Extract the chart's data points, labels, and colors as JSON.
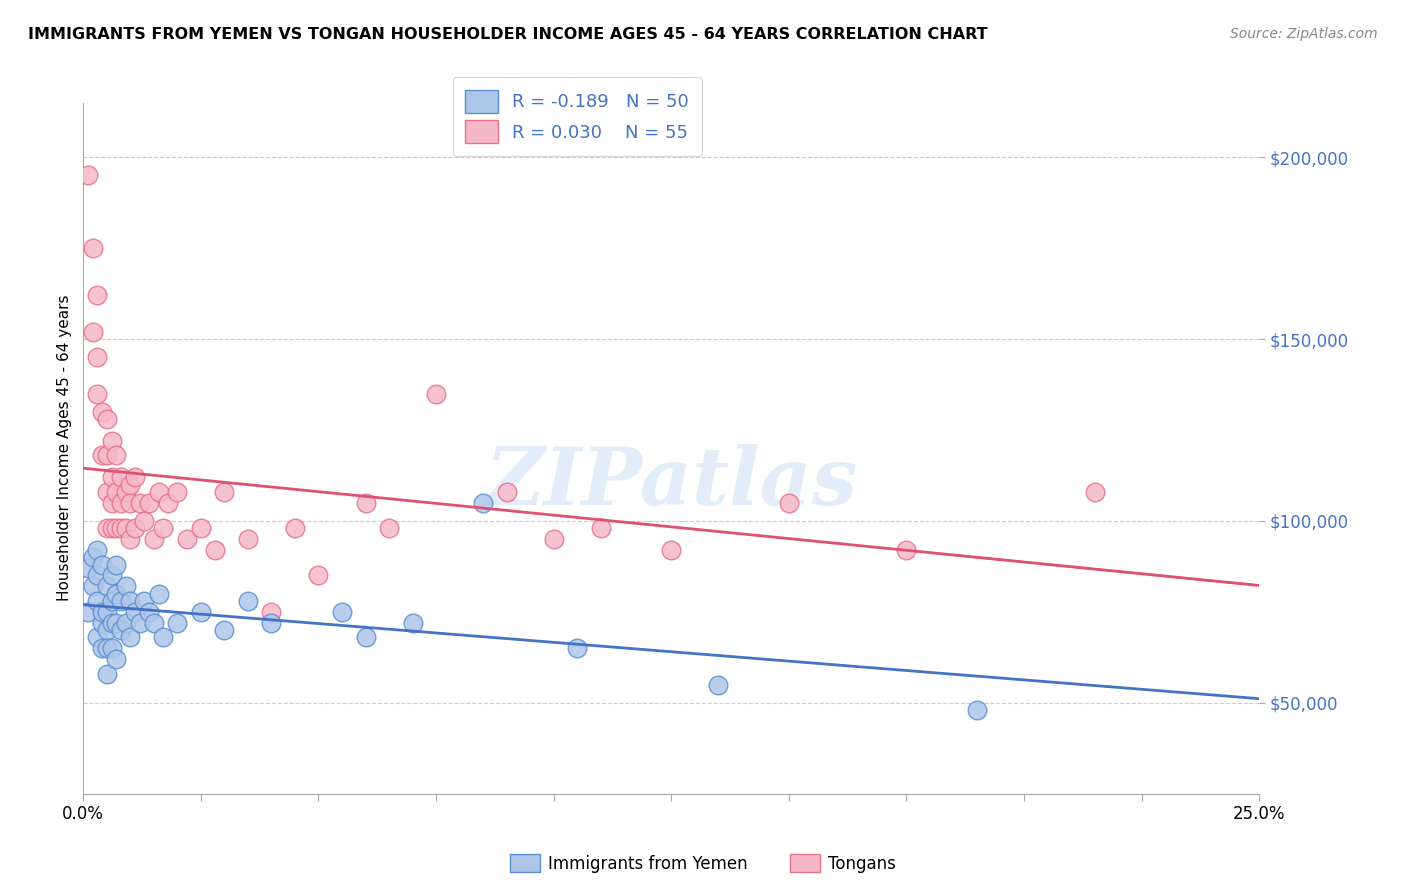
{
  "title": "IMMIGRANTS FROM YEMEN VS TONGAN HOUSEHOLDER INCOME AGES 45 - 64 YEARS CORRELATION CHART",
  "source": "Source: ZipAtlas.com",
  "ylabel": "Householder Income Ages 45 - 64 years",
  "xlim": [
    0.0,
    0.25
  ],
  "ylim": [
    25000,
    215000
  ],
  "yticks": [
    50000,
    100000,
    150000,
    200000
  ],
  "ytick_labels": [
    "$50,000",
    "$100,000",
    "$150,000",
    "$200,000"
  ],
  "xticks": [
    0.0,
    0.025,
    0.05,
    0.075,
    0.1,
    0.125,
    0.15,
    0.175,
    0.2,
    0.225,
    0.25
  ],
  "xtick_labels": [
    "0.0%",
    "",
    "",
    "",
    "",
    "",
    "",
    "",
    "",
    "",
    "25.0%"
  ],
  "legend_r_blue": "-0.189",
  "legend_n_blue": "50",
  "legend_r_pink": "0.030",
  "legend_n_pink": "55",
  "blue_color": "#adc6e8",
  "pink_color": "#f5b8c8",
  "blue_edge_color": "#5b8ed6",
  "pink_edge_color": "#e8708a",
  "blue_line_color": "#4472c4",
  "pink_line_color": "#e05070",
  "label_color": "#4472c4",
  "watermark": "ZIPatlas",
  "blue_scatter_x": [
    0.001,
    0.001,
    0.002,
    0.002,
    0.003,
    0.003,
    0.003,
    0.003,
    0.004,
    0.004,
    0.004,
    0.004,
    0.005,
    0.005,
    0.005,
    0.005,
    0.005,
    0.006,
    0.006,
    0.006,
    0.006,
    0.007,
    0.007,
    0.007,
    0.007,
    0.008,
    0.008,
    0.009,
    0.009,
    0.01,
    0.01,
    0.011,
    0.012,
    0.013,
    0.014,
    0.015,
    0.016,
    0.017,
    0.02,
    0.025,
    0.03,
    0.035,
    0.04,
    0.055,
    0.06,
    0.07,
    0.085,
    0.105,
    0.135,
    0.19
  ],
  "blue_scatter_y": [
    87000,
    75000,
    90000,
    82000,
    78000,
    92000,
    85000,
    68000,
    72000,
    88000,
    75000,
    65000,
    82000,
    75000,
    70000,
    65000,
    58000,
    85000,
    78000,
    72000,
    65000,
    88000,
    80000,
    72000,
    62000,
    78000,
    70000,
    82000,
    72000,
    78000,
    68000,
    75000,
    72000,
    78000,
    75000,
    72000,
    80000,
    68000,
    72000,
    75000,
    70000,
    78000,
    72000,
    75000,
    68000,
    72000,
    105000,
    65000,
    55000,
    48000
  ],
  "pink_scatter_x": [
    0.001,
    0.002,
    0.002,
    0.003,
    0.003,
    0.003,
    0.004,
    0.004,
    0.005,
    0.005,
    0.005,
    0.005,
    0.006,
    0.006,
    0.006,
    0.006,
    0.007,
    0.007,
    0.007,
    0.008,
    0.008,
    0.008,
    0.009,
    0.009,
    0.01,
    0.01,
    0.01,
    0.011,
    0.011,
    0.012,
    0.013,
    0.014,
    0.015,
    0.016,
    0.017,
    0.018,
    0.02,
    0.022,
    0.025,
    0.028,
    0.03,
    0.035,
    0.04,
    0.045,
    0.05,
    0.06,
    0.065,
    0.075,
    0.09,
    0.1,
    0.11,
    0.125,
    0.15,
    0.175,
    0.215
  ],
  "pink_scatter_y": [
    195000,
    175000,
    152000,
    162000,
    145000,
    135000,
    130000,
    118000,
    128000,
    118000,
    108000,
    98000,
    122000,
    112000,
    105000,
    98000,
    118000,
    108000,
    98000,
    112000,
    105000,
    98000,
    108000,
    98000,
    110000,
    105000,
    95000,
    112000,
    98000,
    105000,
    100000,
    105000,
    95000,
    108000,
    98000,
    105000,
    108000,
    95000,
    98000,
    92000,
    108000,
    95000,
    75000,
    98000,
    85000,
    105000,
    98000,
    135000,
    108000,
    95000,
    98000,
    92000,
    105000,
    92000,
    108000
  ]
}
